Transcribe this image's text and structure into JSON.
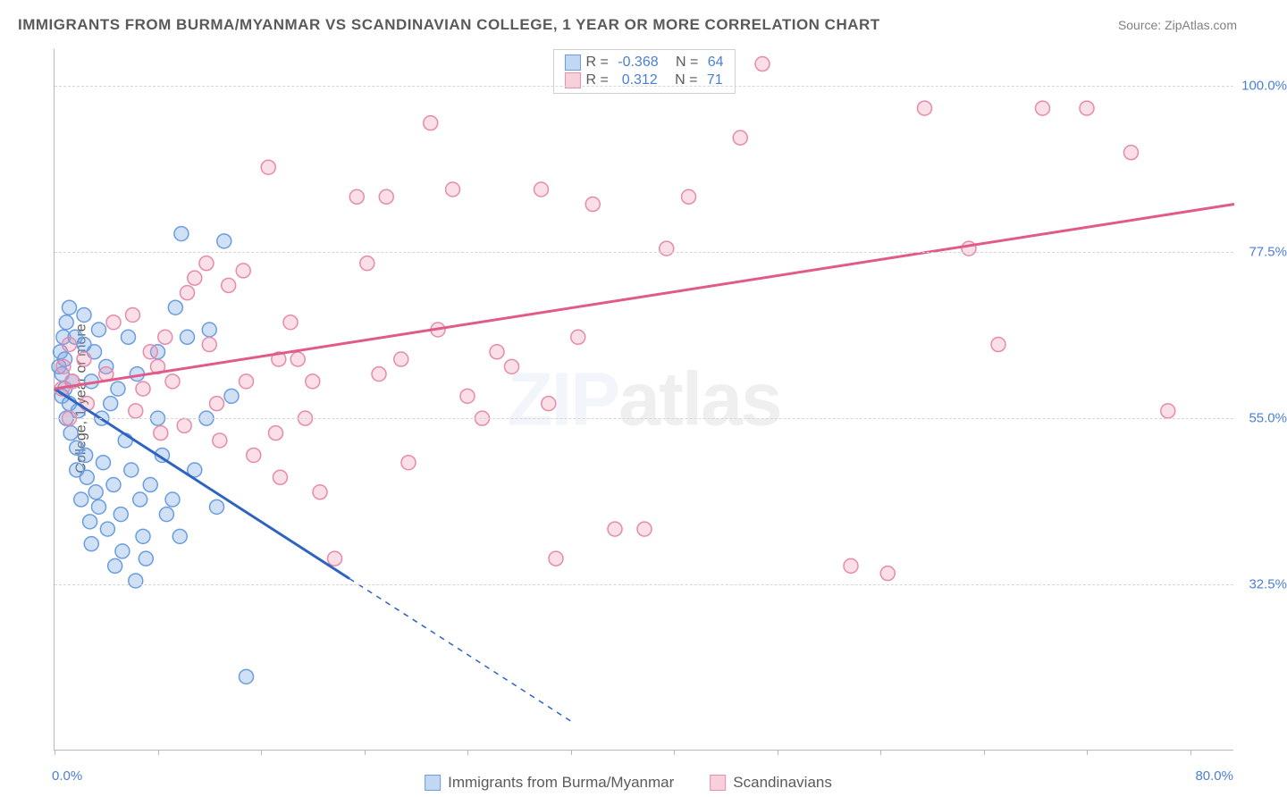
{
  "title": "IMMIGRANTS FROM BURMA/MYANMAR VS SCANDINAVIAN COLLEGE, 1 YEAR OR MORE CORRELATION CHART",
  "source_label": "Source: ",
  "source_name": "ZipAtlas.com",
  "y_axis_label": "College, 1 year or more",
  "watermark_a": "ZIP",
  "watermark_b": "atlas",
  "chart": {
    "type": "scatter",
    "xlim": [
      0,
      80
    ],
    "ylim": [
      10,
      105
    ],
    "x_ticks": [
      0,
      7,
      14,
      21,
      28,
      35,
      42,
      49,
      56,
      63,
      70,
      77
    ],
    "x_tick_labels": {
      "0": "0.0%",
      "80": "80.0%"
    },
    "y_gridlines": [
      32.5,
      55.0,
      77.5,
      100.0
    ],
    "y_tick_labels": [
      "32.5%",
      "55.0%",
      "77.5%",
      "100.0%"
    ],
    "background_color": "#ffffff",
    "grid_color": "#d6d6d6",
    "axis_color": "#b8b8b8",
    "label_color": "#4a7fd6",
    "marker_radius": 8,
    "marker_stroke_width": 1.5,
    "series": [
      {
        "name": "Immigrants from Burma/Myanmar",
        "color_fill": "rgba(120,167,227,0.35)",
        "color_stroke": "#6a9de0",
        "R": "-0.368",
        "N": "64",
        "trend": {
          "x1": 0,
          "y1": 59,
          "x2": 35,
          "y2": 14,
          "solid_until_x": 20,
          "color": "#2f63c2",
          "width": 3
        },
        "points": [
          [
            0.3,
            62
          ],
          [
            0.4,
            64
          ],
          [
            0.5,
            58
          ],
          [
            0.5,
            61
          ],
          [
            0.6,
            66
          ],
          [
            0.7,
            63
          ],
          [
            0.7,
            59
          ],
          [
            0.8,
            55
          ],
          [
            0.8,
            68
          ],
          [
            1.0,
            70
          ],
          [
            1.0,
            57
          ],
          [
            1.1,
            53
          ],
          [
            1.2,
            60
          ],
          [
            1.4,
            66
          ],
          [
            1.5,
            51
          ],
          [
            1.5,
            48
          ],
          [
            1.6,
            56
          ],
          [
            1.8,
            44
          ],
          [
            2.0,
            65
          ],
          [
            2.0,
            69
          ],
          [
            2.1,
            50
          ],
          [
            2.2,
            47
          ],
          [
            2.4,
            41
          ],
          [
            2.5,
            38
          ],
          [
            2.5,
            60
          ],
          [
            2.7,
            64
          ],
          [
            2.8,
            45
          ],
          [
            3.0,
            43
          ],
          [
            3.0,
            67
          ],
          [
            3.2,
            55
          ],
          [
            3.3,
            49
          ],
          [
            3.5,
            62
          ],
          [
            3.6,
            40
          ],
          [
            3.8,
            57
          ],
          [
            4.0,
            46
          ],
          [
            4.1,
            35
          ],
          [
            4.3,
            59
          ],
          [
            4.5,
            42
          ],
          [
            4.6,
            37
          ],
          [
            4.8,
            52
          ],
          [
            5.0,
            66
          ],
          [
            5.2,
            48
          ],
          [
            5.5,
            33
          ],
          [
            5.6,
            61
          ],
          [
            5.8,
            44
          ],
          [
            6.0,
            39
          ],
          [
            6.2,
            36
          ],
          [
            6.5,
            46
          ],
          [
            7.0,
            64
          ],
          [
            7.0,
            55
          ],
          [
            7.3,
            50
          ],
          [
            7.6,
            42
          ],
          [
            8.0,
            44
          ],
          [
            8.2,
            70
          ],
          [
            8.5,
            39
          ],
          [
            8.6,
            80
          ],
          [
            9.0,
            66
          ],
          [
            9.5,
            48
          ],
          [
            10.3,
            55
          ],
          [
            10.5,
            67
          ],
          [
            11.0,
            43
          ],
          [
            12.0,
            58
          ],
          [
            13.0,
            20
          ],
          [
            11.5,
            79
          ]
        ]
      },
      {
        "name": "Scandinavians",
        "color_fill": "rgba(240,150,175,0.30)",
        "color_stroke": "#e68aab",
        "R": "0.312",
        "N": "71",
        "trend": {
          "x1": 0,
          "y1": 59,
          "x2": 80,
          "y2": 84,
          "color": "#e05b8a",
          "width": 3
        },
        "points": [
          [
            0.5,
            59
          ],
          [
            0.6,
            62
          ],
          [
            1.0,
            55
          ],
          [
            1.0,
            65
          ],
          [
            1.2,
            60
          ],
          [
            2.0,
            63
          ],
          [
            2.2,
            57
          ],
          [
            3.5,
            61
          ],
          [
            4.0,
            68
          ],
          [
            5.3,
            69
          ],
          [
            5.5,
            56
          ],
          [
            6.0,
            59
          ],
          [
            6.5,
            64
          ],
          [
            7.0,
            62
          ],
          [
            7.2,
            53
          ],
          [
            7.5,
            66
          ],
          [
            8.0,
            60
          ],
          [
            8.8,
            54
          ],
          [
            9.0,
            72
          ],
          [
            9.5,
            74
          ],
          [
            10.3,
            76
          ],
          [
            10.5,
            65
          ],
          [
            11.0,
            57
          ],
          [
            11.2,
            52
          ],
          [
            11.8,
            73
          ],
          [
            12.8,
            75
          ],
          [
            13.0,
            60
          ],
          [
            13.5,
            50
          ],
          [
            14.5,
            89
          ],
          [
            15.0,
            53
          ],
          [
            15.2,
            63
          ],
          [
            15.3,
            47
          ],
          [
            16.0,
            68
          ],
          [
            16.5,
            63
          ],
          [
            17.0,
            55
          ],
          [
            17.5,
            60
          ],
          [
            18.0,
            45
          ],
          [
            19.0,
            36
          ],
          [
            20.5,
            85
          ],
          [
            21.2,
            76
          ],
          [
            22.0,
            61
          ],
          [
            22.5,
            85
          ],
          [
            23.5,
            63
          ],
          [
            24.0,
            49
          ],
          [
            25.5,
            95
          ],
          [
            26.0,
            67
          ],
          [
            27.0,
            86
          ],
          [
            28.0,
            58
          ],
          [
            29.0,
            55
          ],
          [
            30.0,
            64
          ],
          [
            31.0,
            62
          ],
          [
            33.0,
            86
          ],
          [
            33.5,
            57
          ],
          [
            34.0,
            36
          ],
          [
            35.5,
            66
          ],
          [
            36.5,
            84
          ],
          [
            38.0,
            40
          ],
          [
            40.0,
            40
          ],
          [
            41.5,
            78
          ],
          [
            43.0,
            85
          ],
          [
            46.5,
            93
          ],
          [
            48.0,
            103
          ],
          [
            54.0,
            35
          ],
          [
            56.5,
            34
          ],
          [
            59.0,
            97
          ],
          [
            62.0,
            78
          ],
          [
            64.0,
            65
          ],
          [
            67.0,
            97
          ],
          [
            70.0,
            97
          ],
          [
            73.0,
            91
          ],
          [
            75.5,
            56
          ]
        ]
      }
    ]
  },
  "legend_bottom": [
    {
      "swatch": "blue",
      "label": "Immigrants from Burma/Myanmar"
    },
    {
      "swatch": "pink",
      "label": "Scandinavians"
    }
  ]
}
